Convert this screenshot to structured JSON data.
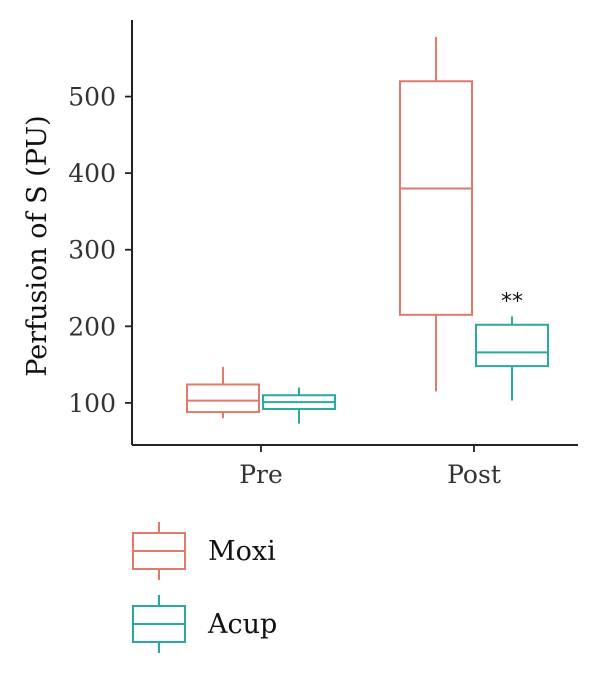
{
  "chart_data": {
    "type": "boxplot",
    "title": "",
    "xlabel": "",
    "ylabel": "Perfusion of S (PU)",
    "ylim": [
      45,
      600
    ],
    "yticks": [
      100,
      200,
      300,
      400,
      500
    ],
    "yticklabels": [
      "100",
      "200",
      "300",
      "400",
      "500"
    ],
    "categories": [
      "Pre",
      "Post"
    ],
    "series": [
      {
        "name": "Moxi",
        "color": "#e07b6a",
        "boxes": [
          {
            "category": "Pre",
            "min": 80,
            "q1": 88,
            "median": 103,
            "q3": 124,
            "max": 147
          },
          {
            "category": "Post",
            "min": 115,
            "q1": 215,
            "median": 380,
            "q3": 520,
            "max": 578
          }
        ]
      },
      {
        "name": "Acup",
        "color": "#2aa8a3",
        "boxes": [
          {
            "category": "Pre",
            "min": 73,
            "q1": 92,
            "median": 101,
            "q3": 110,
            "max": 120
          },
          {
            "category": "Post",
            "min": 103,
            "q1": 148,
            "median": 166,
            "q3": 202,
            "max": 213
          }
        ]
      }
    ],
    "annotations": [
      {
        "category": "Post",
        "series": "Acup",
        "text": "**"
      }
    ],
    "legend": {
      "position": "bottom-left",
      "entries": [
        "Moxi",
        "Acup"
      ]
    },
    "grid": false
  }
}
